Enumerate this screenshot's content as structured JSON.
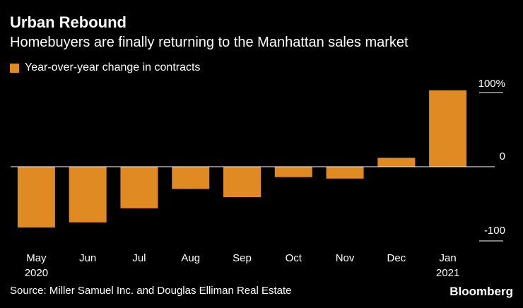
{
  "header": {
    "title": "Urban Rebound",
    "subtitle": "Homebuyers are finally returning to the Manhattan sales market"
  },
  "footer": {
    "source": "Source: Miller Samuel Inc. and Douglas Elliman Real Estate",
    "brand": "Bloomberg"
  },
  "colors": {
    "bar": "#E08A23",
    "background": "#000000",
    "text": "#FFFFFF"
  },
  "chart_data": {
    "type": "bar",
    "title": "Urban Rebound",
    "subtitle": "Homebuyers are finally returning to the Manhattan sales market",
    "categories": [
      "May",
      "Jun",
      "Jul",
      "Aug",
      "Sep",
      "Oct",
      "Nov",
      "Dec",
      "Jan"
    ],
    "year_labels": [
      "2020",
      "",
      "",
      "",
      "",
      "",
      "",
      "",
      "2021"
    ],
    "series": [
      {
        "name": "Year-over-year change in contracts",
        "values": [
          -82,
          -75,
          -56,
          -30,
          -41,
          -14,
          -16,
          12,
          103
        ]
      }
    ],
    "yticks": [
      {
        "value": 100,
        "label": "100%"
      },
      {
        "value": 0,
        "label": "0"
      },
      {
        "value": -100,
        "label": "-100"
      }
    ],
    "ylim": [
      -100,
      115
    ],
    "grid": false,
    "legend": "top-left"
  }
}
